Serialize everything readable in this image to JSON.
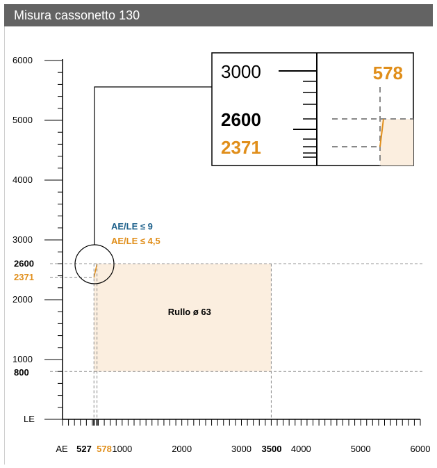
{
  "header": {
    "title": "Misura cassonetto 130"
  },
  "colors": {
    "header_bg": "#636363",
    "axis": "#000000",
    "grid_dashed": "#888888",
    "region_fill": "#fbeedf",
    "orange": "#e08e1a",
    "blue": "#1b5f8a"
  },
  "chart_data": {
    "type": "area",
    "title": "",
    "xlabel": "AE",
    "ylabel": "LE",
    "xlim": [
      0,
      6000
    ],
    "ylim": [
      0,
      6000
    ],
    "x_tick_labels": [
      1000,
      2000,
      3000,
      4000,
      5000,
      6000
    ],
    "y_tick_labels": [
      1000,
      2000,
      3000,
      4000,
      5000,
      6000
    ],
    "x_highlight_labels": [
      {
        "value": 527,
        "label": "527",
        "color": "#000000"
      },
      {
        "value": 578,
        "label": "578",
        "color": "#e08e1a"
      },
      {
        "value": 3500,
        "label": "3500",
        "color": "#000000"
      }
    ],
    "y_highlight_labels": [
      {
        "value": 2600,
        "label": "2600",
        "color": "#000000"
      },
      {
        "value": 2371,
        "label": "2371",
        "color": "#e08e1a"
      },
      {
        "value": 800,
        "label": "800",
        "color": "#000000"
      }
    ],
    "region": {
      "label": "Rullo ø 63",
      "polygon": [
        [
          527,
          800
        ],
        [
          3500,
          800
        ],
        [
          3500,
          2600
        ],
        [
          578,
          2600
        ],
        [
          527,
          2371
        ]
      ]
    },
    "legend": [
      {
        "label": "AE/LE ≤ 9",
        "color": "#1b5f8a"
      },
      {
        "label": "AE/LE ≤ 4,5",
        "color": "#e08e1a"
      }
    ],
    "zoom_inset": {
      "labels": [
        {
          "value": 3000,
          "label": "3000",
          "color": "#000000",
          "bold": false
        },
        {
          "value": 2600,
          "label": "2600",
          "color": "#000000",
          "bold": true
        },
        {
          "value": 2371,
          "label": "2371",
          "color": "#e08e1a",
          "bold": true
        },
        {
          "value": 578,
          "label": "578",
          "color": "#e08e1a",
          "bold": true
        }
      ]
    }
  }
}
